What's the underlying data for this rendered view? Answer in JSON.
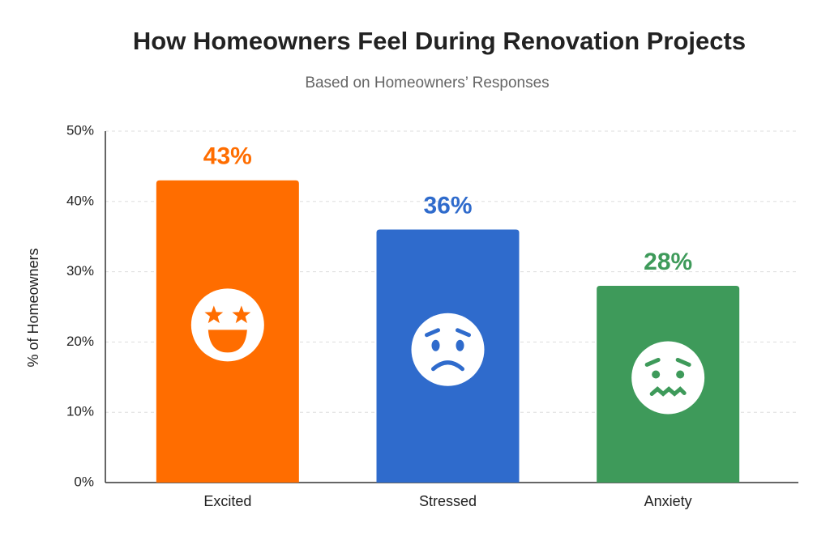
{
  "chart_data": {
    "type": "bar",
    "title": "How Homeowners Feel During Renovation Projects",
    "subtitle": "Based on Homeowners’ Responses",
    "y_label": "% of Homeowners",
    "categories": [
      "Excited",
      "Stressed",
      "Anxiety"
    ],
    "values": [
      43,
      36,
      28
    ],
    "value_labels": [
      "43%",
      "36%",
      "28%"
    ],
    "colors": [
      "#ff6d00",
      "#2f6bcc",
      "#3e9a5a"
    ],
    "ylim": [
      0,
      50
    ],
    "yticks": [
      {
        "value": 0,
        "label": "0%"
      },
      {
        "value": 10,
        "label": "10%"
      },
      {
        "value": 20,
        "label": "20%"
      },
      {
        "value": 30,
        "label": "30%"
      },
      {
        "value": 40,
        "label": "40%"
      },
      {
        "value": 50,
        "label": "50%"
      }
    ],
    "grid": true
  }
}
